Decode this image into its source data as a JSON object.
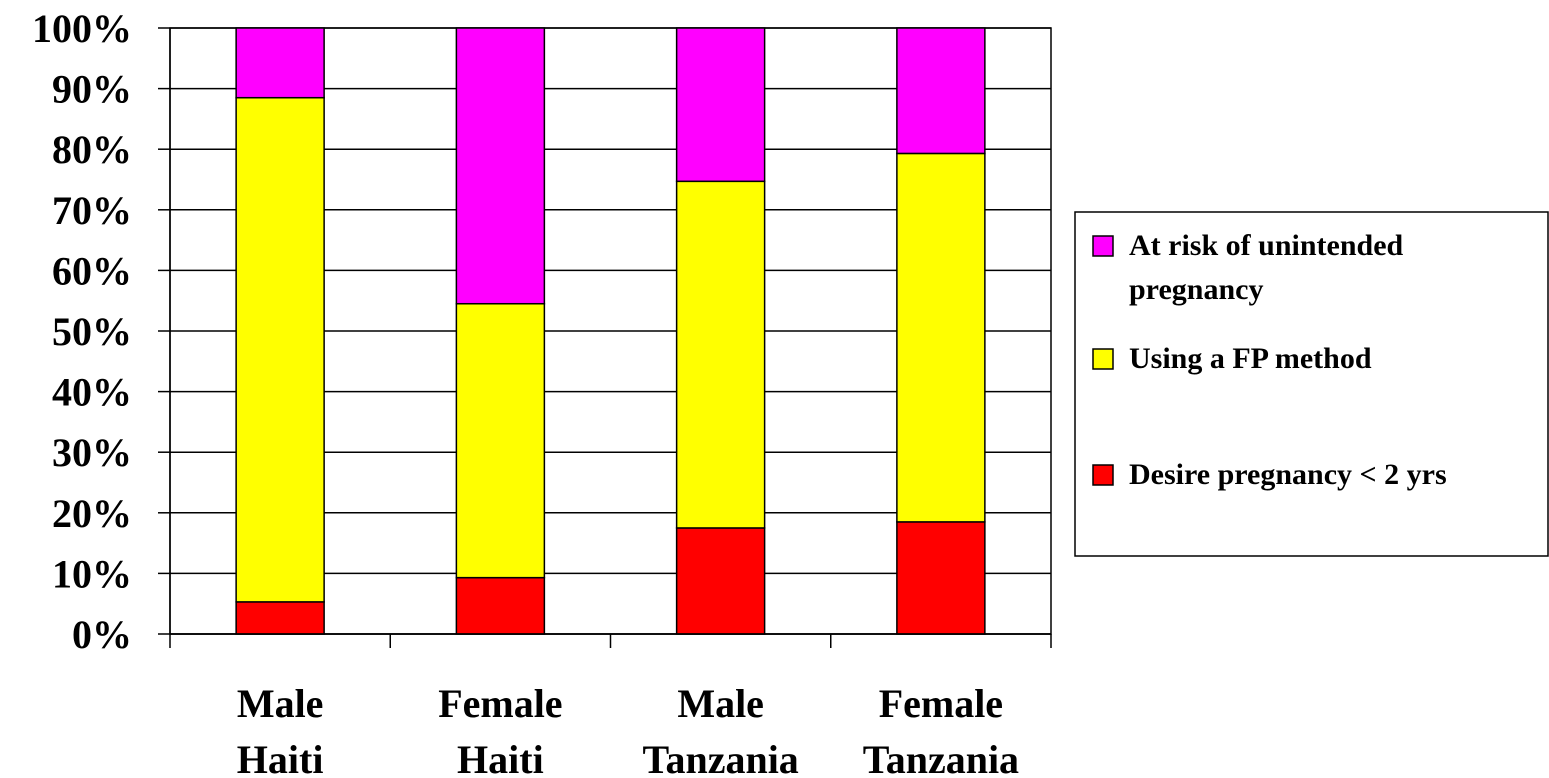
{
  "chart_data": {
    "type": "bar",
    "stacked": true,
    "percent_stacked": true,
    "categories": [
      [
        "Male",
        "Haiti"
      ],
      [
        "Female",
        "Haiti"
      ],
      [
        "Male",
        "Tanzania"
      ],
      [
        "Female",
        "Tanzania"
      ]
    ],
    "series": [
      {
        "name": "Desire pregnancy < 2 yrs",
        "color": "#ff0000",
        "values": [
          5.3,
          9.3,
          17.5,
          18.5
        ]
      },
      {
        "name": "Using a FP method",
        "color": "#ffff00",
        "values": [
          83.2,
          45.2,
          57.2,
          60.8
        ]
      },
      {
        "name": "At risk of unintended pregnancy",
        "color": "#ff00ff",
        "values": [
          11.5,
          45.5,
          25.3,
          20.7
        ]
      }
    ],
    "legend": {
      "position": "right",
      "order": [
        "At risk of unintended pregnancy",
        "Using a FP method",
        "Desire pregnancy < 2 yrs"
      ]
    },
    "y_ticks": [
      "0%",
      "10%",
      "20%",
      "30%",
      "40%",
      "50%",
      "60%",
      "70%",
      "80%",
      "90%",
      "100%"
    ],
    "ylim": [
      0,
      100
    ],
    "grid": true,
    "title": "",
    "xlabel": "",
    "ylabel": ""
  }
}
